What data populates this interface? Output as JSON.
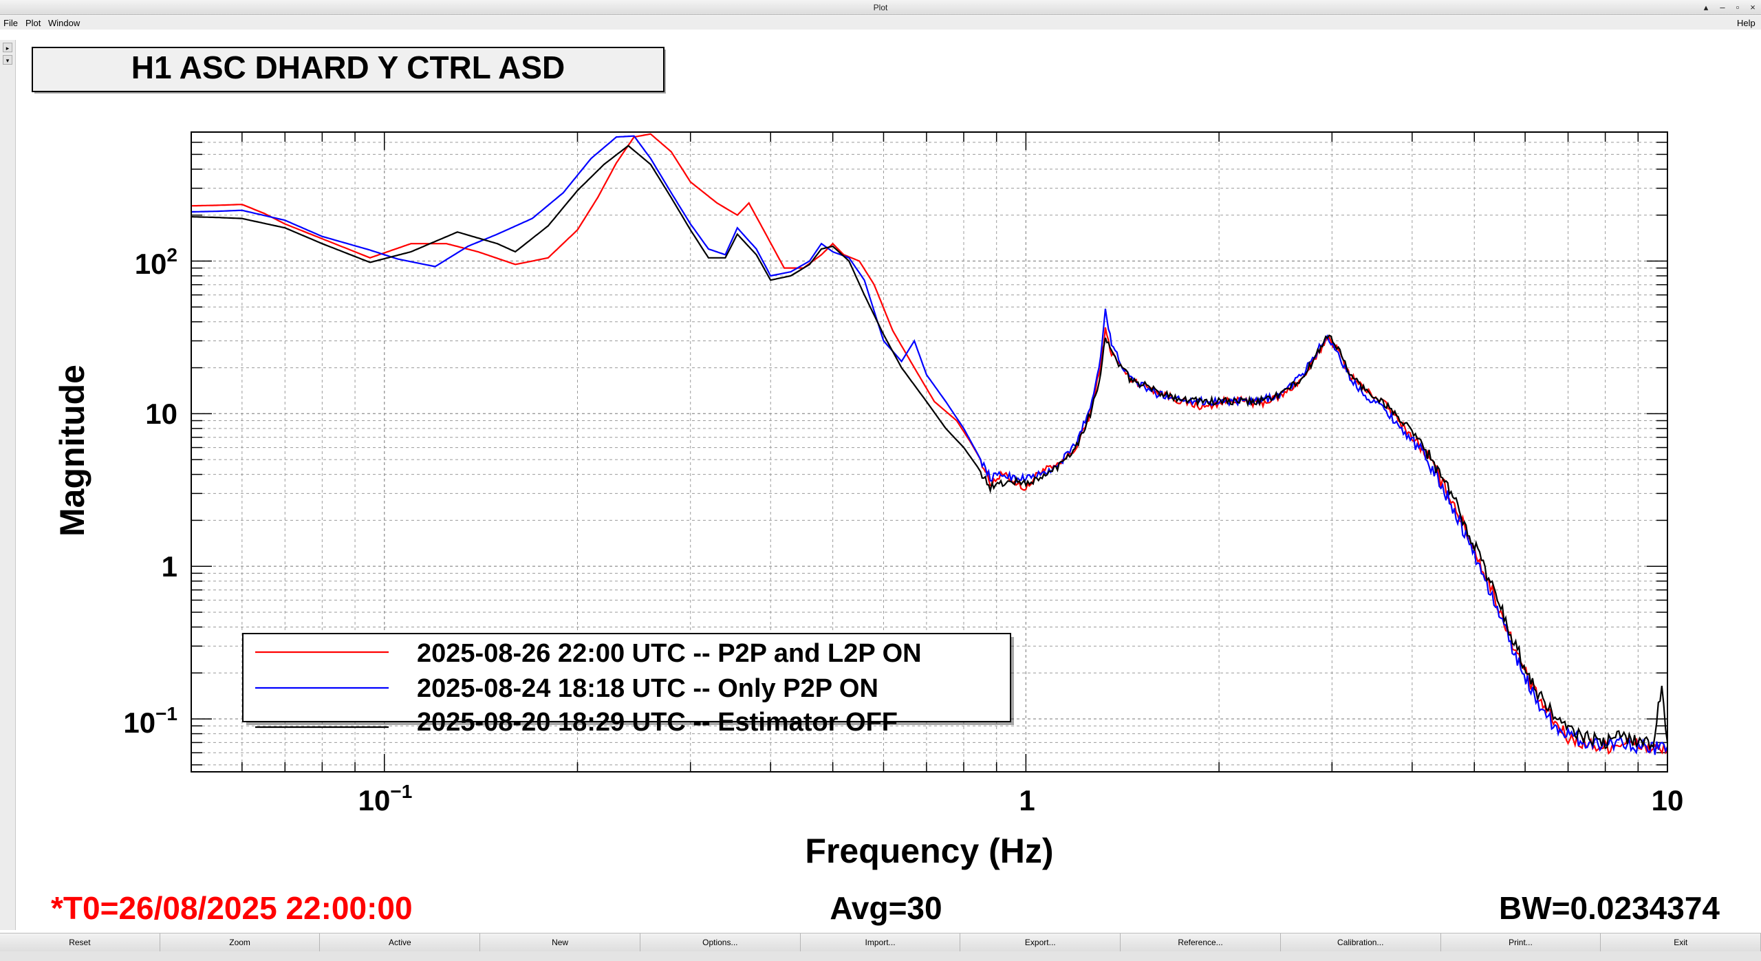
{
  "window": {
    "title": "Plot",
    "controls": [
      "▴",
      "–",
      "▫",
      "×"
    ]
  },
  "menu": {
    "file": "File",
    "plot": "Plot",
    "window": "Window",
    "help": "Help"
  },
  "colors": {
    "red": "#ff0000",
    "blue": "#0000ff",
    "black": "#000000",
    "grid": "#9a9a9a"
  },
  "chart_data": {
    "type": "line",
    "title": "H1 ASC DHARD Y CTRL ASD",
    "xlabel": "Frequency (Hz)",
    "ylabel": "Magnitude",
    "xscale": "log",
    "yscale": "log",
    "xlim": [
      0.05,
      10
    ],
    "ylim": [
      0.045,
      700
    ],
    "grid": true,
    "legend_position": "bottom-left",
    "xticks": [
      {
        "value": 0.1,
        "base": "10",
        "exp": "−1"
      },
      {
        "value": 1,
        "base": "1",
        "exp": ""
      },
      {
        "value": 10,
        "base": "10",
        "exp": ""
      }
    ],
    "yticks": [
      {
        "value": 0.1,
        "base": "10",
        "exp": "−1"
      },
      {
        "value": 1,
        "base": "1",
        "exp": ""
      },
      {
        "value": 10,
        "base": "10",
        "exp": ""
      },
      {
        "value": 100,
        "base": "10",
        "exp": "2"
      }
    ],
    "series": [
      {
        "name": "2025-08-26 22:00 UTC -- P2P and L2P ON",
        "color": "#ff0000",
        "points": [
          [
            0.05,
            230
          ],
          [
            0.055,
            232
          ],
          [
            0.06,
            235
          ],
          [
            0.065,
            205
          ],
          [
            0.07,
            175
          ],
          [
            0.08,
            140
          ],
          [
            0.095,
            105
          ],
          [
            0.11,
            130
          ],
          [
            0.125,
            130
          ],
          [
            0.14,
            115
          ],
          [
            0.16,
            95
          ],
          [
            0.18,
            105
          ],
          [
            0.2,
            160
          ],
          [
            0.215,
            260
          ],
          [
            0.23,
            440
          ],
          [
            0.245,
            650
          ],
          [
            0.26,
            680
          ],
          [
            0.28,
            520
          ],
          [
            0.3,
            330
          ],
          [
            0.33,
            240
          ],
          [
            0.355,
            200
          ],
          [
            0.37,
            240
          ],
          [
            0.39,
            160
          ],
          [
            0.42,
            90
          ],
          [
            0.45,
            90
          ],
          [
            0.48,
            110
          ],
          [
            0.5,
            130
          ],
          [
            0.52,
            110
          ],
          [
            0.55,
            100
          ],
          [
            0.58,
            70
          ],
          [
            0.62,
            35
          ],
          [
            0.67,
            20
          ],
          [
            0.72,
            12
          ],
          [
            0.78,
            9
          ],
          [
            0.82,
            6.5
          ],
          [
            0.85,
            5
          ],
          [
            0.88,
            3.5
          ],
          [
            0.92,
            4
          ],
          [
            0.96,
            3.6
          ],
          [
            1.0,
            3.2
          ],
          [
            1.05,
            4.2
          ],
          [
            1.12,
            4.5
          ],
          [
            1.2,
            6
          ],
          [
            1.26,
            10
          ],
          [
            1.3,
            18
          ],
          [
            1.33,
            35
          ],
          [
            1.36,
            25
          ],
          [
            1.45,
            17
          ],
          [
            1.6,
            14
          ],
          [
            1.75,
            12
          ],
          [
            1.9,
            11
          ],
          [
            2.1,
            12.5
          ],
          [
            2.3,
            11.5
          ],
          [
            2.5,
            13
          ],
          [
            2.7,
            17
          ],
          [
            2.85,
            24
          ],
          [
            2.95,
            32
          ],
          [
            3.05,
            27
          ],
          [
            3.2,
            18
          ],
          [
            3.4,
            14
          ],
          [
            3.6,
            12
          ],
          [
            3.9,
            8
          ],
          [
            4.2,
            5.5
          ],
          [
            4.6,
            2.8
          ],
          [
            5.0,
            1.3
          ],
          [
            5.4,
            0.6
          ],
          [
            5.8,
            0.28
          ],
          [
            6.2,
            0.15
          ],
          [
            6.6,
            0.1
          ],
          [
            7.0,
            0.075
          ],
          [
            7.5,
            0.068
          ],
          [
            8.0,
            0.065
          ],
          [
            8.5,
            0.07
          ],
          [
            9.0,
            0.068
          ],
          [
            9.5,
            0.063
          ],
          [
            10,
            0.062
          ]
        ]
      },
      {
        "name": "2025-08-24 18:18 UTC -- Only P2P ON",
        "color": "#0000ff",
        "points": [
          [
            0.05,
            210
          ],
          [
            0.055,
            212
          ],
          [
            0.06,
            215
          ],
          [
            0.07,
            185
          ],
          [
            0.08,
            145
          ],
          [
            0.095,
            118
          ],
          [
            0.105,
            103
          ],
          [
            0.12,
            92
          ],
          [
            0.135,
            125
          ],
          [
            0.15,
            150
          ],
          [
            0.17,
            190
          ],
          [
            0.19,
            280
          ],
          [
            0.21,
            470
          ],
          [
            0.23,
            650
          ],
          [
            0.245,
            660
          ],
          [
            0.26,
            470
          ],
          [
            0.28,
            280
          ],
          [
            0.3,
            175
          ],
          [
            0.32,
            120
          ],
          [
            0.34,
            110
          ],
          [
            0.355,
            165
          ],
          [
            0.38,
            120
          ],
          [
            0.4,
            80
          ],
          [
            0.43,
            85
          ],
          [
            0.46,
            100
          ],
          [
            0.48,
            130
          ],
          [
            0.5,
            115
          ],
          [
            0.53,
            105
          ],
          [
            0.56,
            75
          ],
          [
            0.6,
            30
          ],
          [
            0.64,
            22
          ],
          [
            0.67,
            30
          ],
          [
            0.7,
            18
          ],
          [
            0.75,
            12
          ],
          [
            0.8,
            8
          ],
          [
            0.84,
            5.5
          ],
          [
            0.88,
            3.8
          ],
          [
            0.92,
            4
          ],
          [
            0.96,
            3.8
          ],
          [
            1.0,
            3.8
          ],
          [
            1.06,
            4
          ],
          [
            1.12,
            4.5
          ],
          [
            1.2,
            6.5
          ],
          [
            1.26,
            11
          ],
          [
            1.3,
            20
          ],
          [
            1.33,
            48
          ],
          [
            1.36,
            28
          ],
          [
            1.45,
            17
          ],
          [
            1.6,
            13.5
          ],
          [
            1.75,
            12.5
          ],
          [
            1.9,
            12
          ],
          [
            2.1,
            12
          ],
          [
            2.3,
            12
          ],
          [
            2.5,
            13.5
          ],
          [
            2.7,
            18
          ],
          [
            2.85,
            26
          ],
          [
            2.95,
            32
          ],
          [
            3.05,
            26
          ],
          [
            3.2,
            17
          ],
          [
            3.4,
            13
          ],
          [
            3.6,
            11
          ],
          [
            3.9,
            7.5
          ],
          [
            4.2,
            5.2
          ],
          [
            4.6,
            2.6
          ],
          [
            5.0,
            1.2
          ],
          [
            5.4,
            0.55
          ],
          [
            5.8,
            0.26
          ],
          [
            6.2,
            0.14
          ],
          [
            6.6,
            0.095
          ],
          [
            7.0,
            0.078
          ],
          [
            7.5,
            0.07
          ],
          [
            8.0,
            0.068
          ],
          [
            8.5,
            0.072
          ],
          [
            9.0,
            0.066
          ],
          [
            9.5,
            0.064
          ],
          [
            10,
            0.066
          ]
        ]
      },
      {
        "name": "2025-08-20 18:29 UTC -- Estimator OFF",
        "color": "#000000",
        "points": [
          [
            0.05,
            195
          ],
          [
            0.055,
            193
          ],
          [
            0.06,
            190
          ],
          [
            0.07,
            165
          ],
          [
            0.08,
            130
          ],
          [
            0.095,
            98
          ],
          [
            0.11,
            115
          ],
          [
            0.13,
            155
          ],
          [
            0.15,
            130
          ],
          [
            0.16,
            115
          ],
          [
            0.18,
            170
          ],
          [
            0.2,
            290
          ],
          [
            0.22,
            430
          ],
          [
            0.24,
            570
          ],
          [
            0.26,
            430
          ],
          [
            0.28,
            260
          ],
          [
            0.3,
            160
          ],
          [
            0.32,
            105
          ],
          [
            0.34,
            105
          ],
          [
            0.355,
            150
          ],
          [
            0.38,
            110
          ],
          [
            0.4,
            75
          ],
          [
            0.43,
            80
          ],
          [
            0.46,
            95
          ],
          [
            0.48,
            120
          ],
          [
            0.5,
            125
          ],
          [
            0.53,
            100
          ],
          [
            0.56,
            60
          ],
          [
            0.6,
            33
          ],
          [
            0.64,
            20
          ],
          [
            0.7,
            12
          ],
          [
            0.75,
            8
          ],
          [
            0.8,
            6
          ],
          [
            0.84,
            4.5
          ],
          [
            0.88,
            3.3
          ],
          [
            0.92,
            3.5
          ],
          [
            0.96,
            3.6
          ],
          [
            1.0,
            3.5
          ],
          [
            1.06,
            3.8
          ],
          [
            1.12,
            4.5
          ],
          [
            1.2,
            6.2
          ],
          [
            1.26,
            10
          ],
          [
            1.3,
            16
          ],
          [
            1.33,
            32
          ],
          [
            1.36,
            25
          ],
          [
            1.45,
            17
          ],
          [
            1.6,
            14
          ],
          [
            1.75,
            12.5
          ],
          [
            1.9,
            12
          ],
          [
            2.1,
            12
          ],
          [
            2.3,
            12
          ],
          [
            2.5,
            13.5
          ],
          [
            2.7,
            17
          ],
          [
            2.85,
            25
          ],
          [
            2.95,
            33
          ],
          [
            3.05,
            28
          ],
          [
            3.2,
            18
          ],
          [
            3.4,
            14
          ],
          [
            3.6,
            12
          ],
          [
            3.9,
            8.5
          ],
          [
            4.2,
            5.8
          ],
          [
            4.6,
            3
          ],
          [
            5.0,
            1.4
          ],
          [
            5.4,
            0.65
          ],
          [
            5.8,
            0.3
          ],
          [
            6.2,
            0.16
          ],
          [
            6.6,
            0.11
          ],
          [
            7.0,
            0.085
          ],
          [
            7.5,
            0.075
          ],
          [
            8.0,
            0.07
          ],
          [
            8.5,
            0.078
          ],
          [
            9.0,
            0.072
          ],
          [
            9.5,
            0.068
          ],
          [
            9.8,
            0.17
          ],
          [
            10,
            0.07
          ]
        ]
      }
    ]
  },
  "status": {
    "t0": "*T0=26/08/2025 22:00:00",
    "avg": "Avg=30",
    "bw": "BW=0.0234374"
  },
  "buttons": [
    "Reset",
    "Zoom",
    "Active",
    "New",
    "Options...",
    "Import...",
    "Export...",
    "Reference...",
    "Calibration...",
    "Print...",
    "Exit"
  ]
}
